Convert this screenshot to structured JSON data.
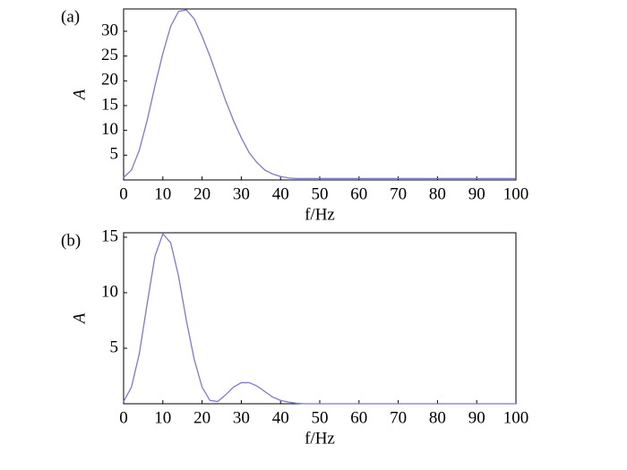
{
  "chart_data": [
    {
      "type": "line",
      "panel_label": "(a)",
      "y_label": "A",
      "x_label": "f/Hz",
      "x": [
        0,
        2,
        4,
        6,
        8,
        10,
        12,
        14,
        16,
        18,
        20,
        22,
        24,
        26,
        28,
        30,
        32,
        34,
        36,
        38,
        40,
        42,
        44,
        46,
        48,
        50,
        60,
        70,
        80,
        90,
        100
      ],
      "series": [
        {
          "color": "#7b7bc8",
          "values": [
            0.5,
            2,
            6,
            12,
            19,
            25.5,
            31,
            34,
            34.3,
            32.5,
            29,
            25,
            20.5,
            16,
            12,
            8.5,
            5.5,
            3.5,
            2,
            1.2,
            0.7,
            0.4,
            0.3,
            0.3,
            0.3,
            0.3,
            0.3,
            0.3,
            0.3,
            0.3,
            0.3
          ]
        }
      ],
      "xlim": [
        0,
        100
      ],
      "xticks": [
        0,
        10,
        20,
        30,
        40,
        50,
        60,
        70,
        80,
        90,
        100
      ],
      "ylim": [
        0,
        34.5
      ],
      "yticks": [
        5,
        10,
        15,
        20,
        25,
        30
      ]
    },
    {
      "type": "line",
      "panel_label": "(b)",
      "y_label": "A",
      "x_label": "f/Hz",
      "x": [
        0,
        2,
        4,
        6,
        8,
        10,
        12,
        14,
        16,
        18,
        20,
        22,
        24,
        26,
        28,
        30,
        32,
        34,
        36,
        38,
        40,
        42,
        44,
        46,
        48,
        50,
        60,
        70,
        80,
        90,
        100
      ],
      "series": [
        {
          "color": "#7b7bc8",
          "values": [
            0.2,
            1.5,
            4.5,
            9,
            13.3,
            15.3,
            14.5,
            11.5,
            7.5,
            4,
            1.5,
            0.3,
            0.2,
            0.8,
            1.5,
            1.9,
            1.9,
            1.6,
            1.1,
            0.6,
            0.3,
            0.15,
            0.05,
            0,
            0,
            0,
            0,
            0,
            0,
            0,
            0
          ]
        }
      ],
      "xlim": [
        0,
        100
      ],
      "xticks": [
        0,
        10,
        20,
        30,
        40,
        50,
        60,
        70,
        80,
        90,
        100
      ],
      "ylim": [
        0,
        15.4
      ],
      "yticks": [
        5,
        10,
        15
      ]
    }
  ]
}
